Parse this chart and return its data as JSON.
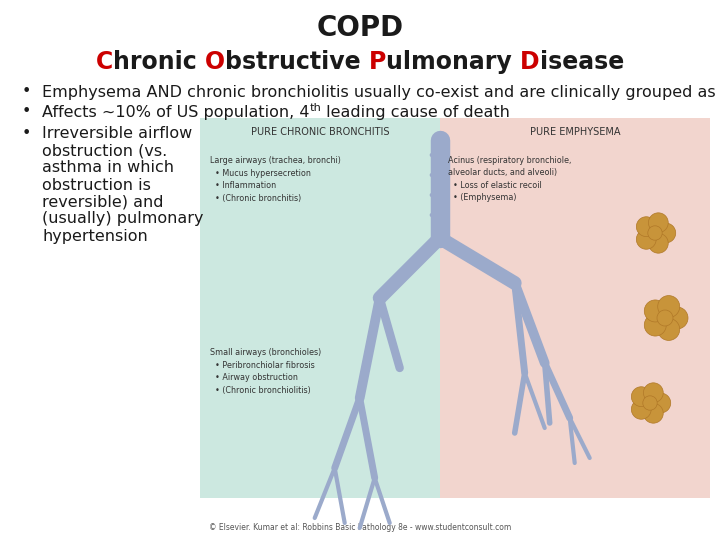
{
  "title": "COPD",
  "subtitle_parts": [
    {
      "text": "C",
      "color": "#cc0000"
    },
    {
      "text": "hronic ",
      "color": "#1a1a1a"
    },
    {
      "text": "O",
      "color": "#cc0000"
    },
    {
      "text": "bstructive ",
      "color": "#1a1a1a"
    },
    {
      "text": "P",
      "color": "#cc0000"
    },
    {
      "text": "ulmonary ",
      "color": "#1a1a1a"
    },
    {
      "text": "D",
      "color": "#cc0000"
    },
    {
      "text": "isease",
      "color": "#1a1a1a"
    }
  ],
  "bullet1": "Emphysema AND chronic bronchiolitis usually co-exist and are clinically grouped as “COPD”",
  "bullet2_main": "Affects ~10% of US population, 4",
  "bullet2_super": "th",
  "bullet2_tail": " leading cause of death",
  "bullet3_lines": [
    "Irreversible airflow",
    "obstruction (vs.",
    "asthma in which",
    "obstruction is",
    "reversible) and",
    "(usually) pulmonary",
    "hypertension"
  ],
  "image_left_bg": "#cce8e0",
  "image_right_bg": "#f2d5ce",
  "caption": "© Elsevier. Kumar et al: Robbins Basic Pathology 8e - www.studentconsult.com",
  "bg_color": "#ffffff",
  "text_color": "#1a1a1a",
  "title_fontsize": 20,
  "subtitle_fontsize": 17,
  "bullet_fontsize": 11.5,
  "tree_color": "#9baacb",
  "alveoli_color": "#c8943a"
}
